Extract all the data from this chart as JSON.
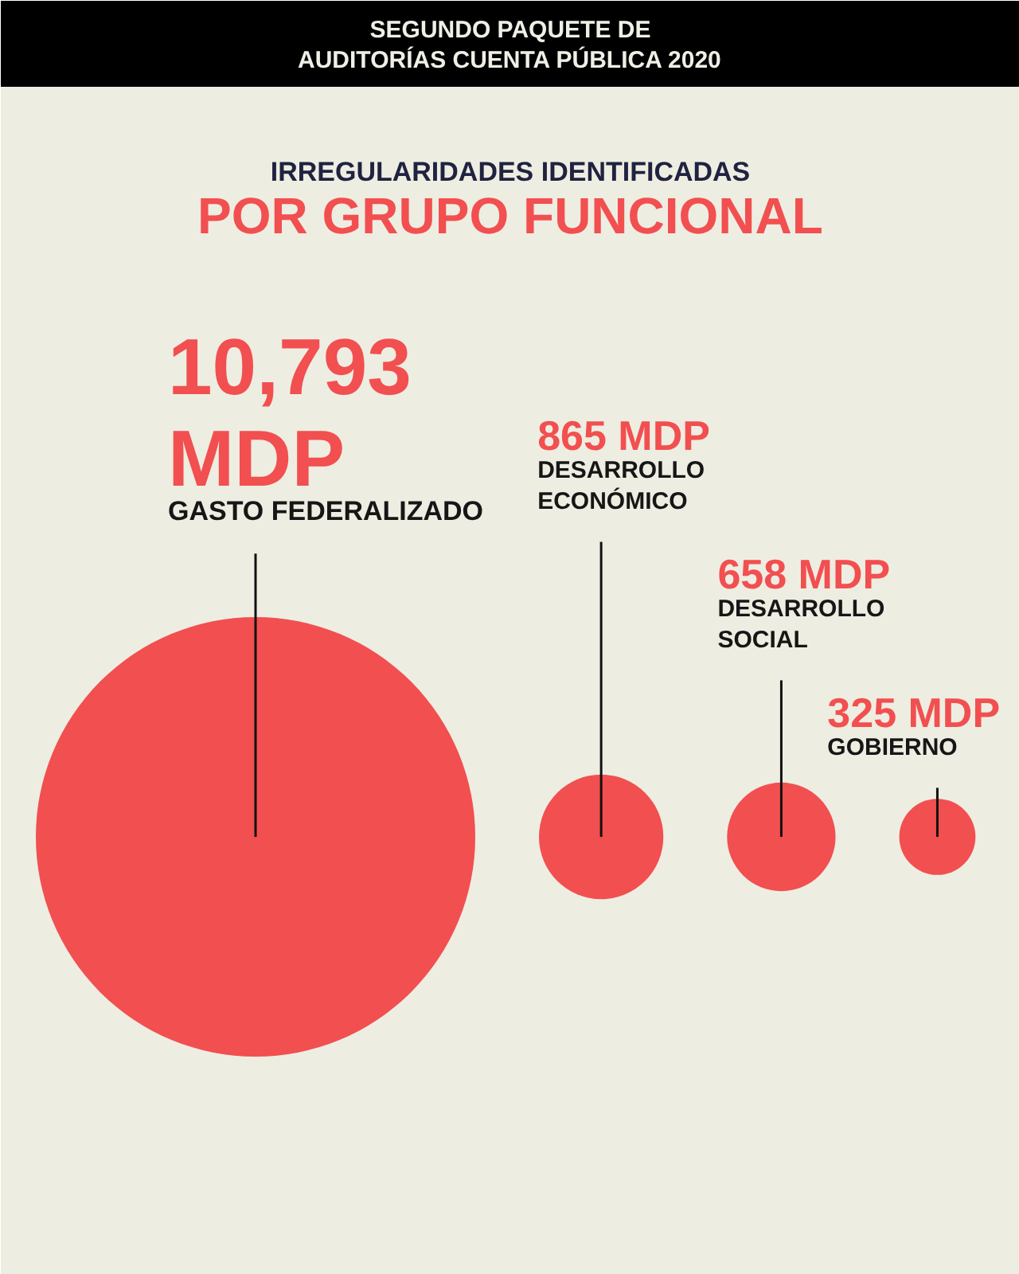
{
  "chart_data": {
    "type": "other",
    "title": "IRREGULARIDADES IDENTIFICADAS",
    "subtitle": "POR GRUPO FUNCIONAL",
    "annotations": [
      "SEGUNDO PAQUETE DE",
      "AUDITORÍAS CUENTA PÚBLICA 2020"
    ],
    "categories": [
      "GASTO FEDERALIZADO",
      "DESARROLLO ECONÓMICO",
      "DESARROLLO SOCIAL",
      "GOBIERNO"
    ],
    "values": [
      10793,
      865,
      658,
      325
    ],
    "value_labels": [
      "10,793 MDP",
      "865 MDP",
      "658 MDP",
      "325 MDP"
    ],
    "color": "#f24f50"
  }
}
